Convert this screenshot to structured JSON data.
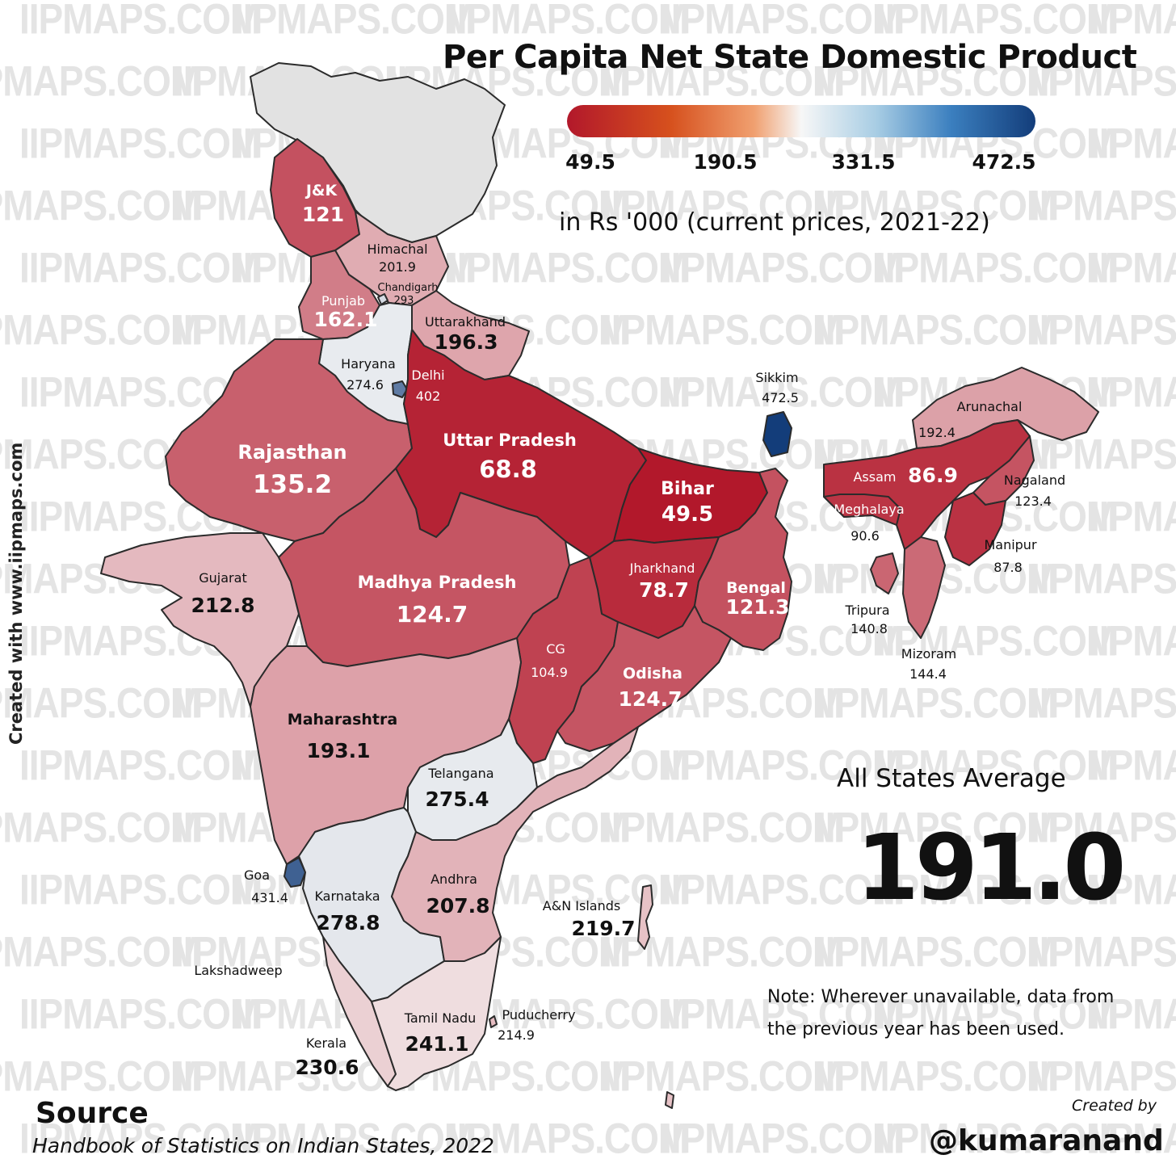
{
  "title": "Per Capita Net State Domestic Product",
  "units": "in Rs '000 (current prices, 2021-22)",
  "watermark": "IIPMAPS.COM",
  "side_credit": "Created with www.iipmaps.com",
  "legend": {
    "ticks": [
      "49.5",
      "190.5",
      "331.5",
      "472.5"
    ],
    "min": 49.5,
    "max": 472.5,
    "colors": {
      "low": "#b2182b",
      "mid": "#f7f7f7",
      "high": "#133d7a"
    }
  },
  "average": {
    "label": "All States Average",
    "value": "191.0"
  },
  "note": {
    "line1": "Note: Wherever unavailable, data from",
    "line2": "the previous year has been used."
  },
  "source": {
    "title": "Source",
    "text": "Handbook of Statistics on Indian States, 2022"
  },
  "credit": {
    "created_by": "Created by",
    "handle": "@kumaranand"
  },
  "states": [
    {
      "name": "J&K",
      "value": "121"
    },
    {
      "name": "Himachal",
      "value": "201.9"
    },
    {
      "name": "Chandigarh",
      "value": "293"
    },
    {
      "name": "Punjab",
      "value": "162.1"
    },
    {
      "name": "Uttarakhand",
      "value": "196.3"
    },
    {
      "name": "Haryana",
      "value": "274.6"
    },
    {
      "name": "Delhi",
      "value": "402"
    },
    {
      "name": "Rajasthan",
      "value": "135.2"
    },
    {
      "name": "Uttar Pradesh",
      "value": "68.8"
    },
    {
      "name": "Bihar",
      "value": "49.5"
    },
    {
      "name": "Sikkim",
      "value": "472.5"
    },
    {
      "name": "Arunachal",
      "value": "192.4"
    },
    {
      "name": "Assam",
      "value": "86.9"
    },
    {
      "name": "Nagaland",
      "value": "123.4"
    },
    {
      "name": "Meghalaya",
      "value": "90.6"
    },
    {
      "name": "Manipur",
      "value": "87.8"
    },
    {
      "name": "Tripura",
      "value": "140.8"
    },
    {
      "name": "Mizoram",
      "value": "144.4"
    },
    {
      "name": "Gujarat",
      "value": "212.8"
    },
    {
      "name": "Madhya Pradesh",
      "value": "124.7"
    },
    {
      "name": "Jharkhand",
      "value": "78.7"
    },
    {
      "name": "Bengal",
      "value": "121.3"
    },
    {
      "name": "CG",
      "value": "104.9"
    },
    {
      "name": "Odisha",
      "value": "124.7"
    },
    {
      "name": "Maharashtra",
      "value": "193.1"
    },
    {
      "name": "Telangana",
      "value": "275.4"
    },
    {
      "name": "Goa",
      "value": "431.4"
    },
    {
      "name": "Karnataka",
      "value": "278.8"
    },
    {
      "name": "Andhra",
      "value": "207.8"
    },
    {
      "name": "A&N Islands",
      "value": "219.7"
    },
    {
      "name": "Lakshadweep",
      "value": ""
    },
    {
      "name": "Tamil Nadu",
      "value": "241.1"
    },
    {
      "name": "Puducherry",
      "value": "214.9"
    },
    {
      "name": "Kerala",
      "value": "230.6"
    }
  ]
}
